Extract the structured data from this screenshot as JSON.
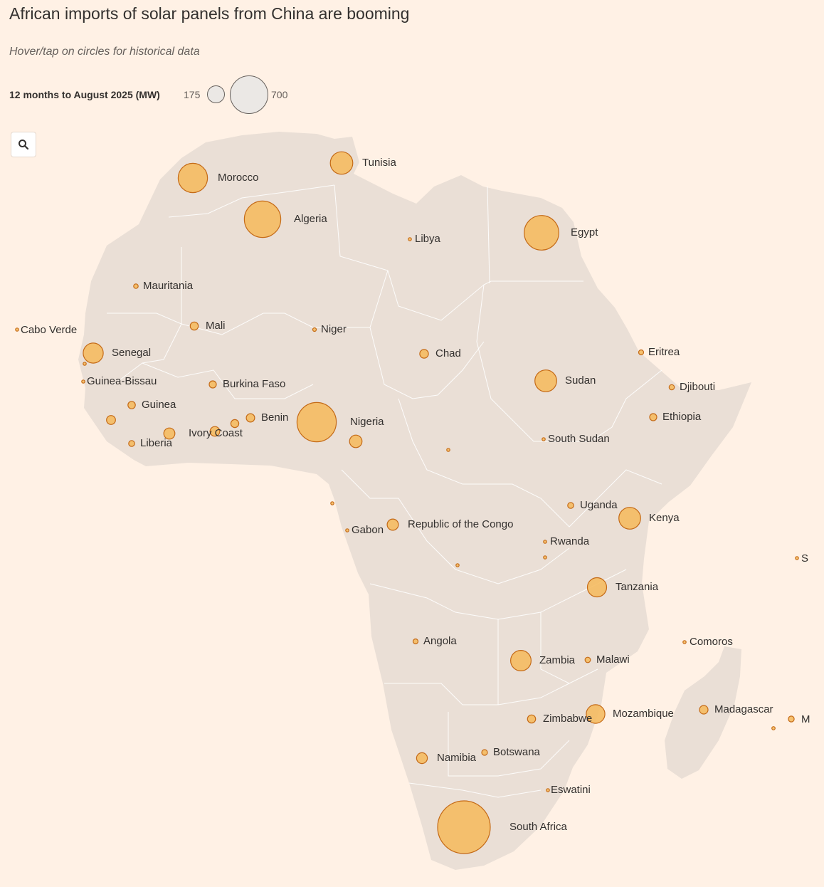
{
  "title": "African imports of solar panels from China are booming",
  "subtitle": "Hover/tap on circles for historical data",
  "legend": {
    "title": "12 months to August 2025 (MW)",
    "small_value": "175",
    "large_value": "700"
  },
  "controls": {
    "zoom_icon": "search-icon"
  },
  "colors": {
    "background": "#fff1e5",
    "land": "#eadfd6",
    "border": "#ffffff",
    "bubble_fill": "#f5bb62",
    "bubble_stroke": "#c46a17",
    "text": "#33302e"
  },
  "legend_reference": {
    "small_mw": 175,
    "large_mw": 700
  },
  "countries": [
    {
      "name": "Morocco",
      "mw": 407
    },
    {
      "name": "Tunisia",
      "mw": 240
    },
    {
      "name": "Algeria",
      "mw": 628
    },
    {
      "name": "Libya",
      "mw": 2
    },
    {
      "name": "Egypt",
      "mw": 565
    },
    {
      "name": "Mauritania",
      "mw": 10
    },
    {
      "name": "Mali",
      "mw": 31
    },
    {
      "name": "Niger",
      "mw": 6
    },
    {
      "name": "Cabo Verde",
      "mw": 1
    },
    {
      "name": "Senegal",
      "mw": 190
    },
    {
      "name": "Chad",
      "mw": 36
    },
    {
      "name": "Eritrea",
      "mw": 12
    },
    {
      "name": "Sudan",
      "mw": 225
    },
    {
      "name": "Guinea-Bissau",
      "mw": 1
    },
    {
      "name": "Djibouti",
      "mw": 13
    },
    {
      "name": "Burkina Faso",
      "mw": 24
    },
    {
      "name": "Guinea",
      "mw": 26
    },
    {
      "name": "Ethiopia",
      "mw": 24
    },
    {
      "name": "Benin",
      "mw": 33
    },
    {
      "name": "Nigeria",
      "mw": 730
    },
    {
      "name": "Ivory Coast",
      "mw": 59
    },
    {
      "name": "Liberia",
      "mw": 17
    },
    {
      "name": "South Sudan",
      "mw": 1
    },
    {
      "name": "Uganda",
      "mw": 17
    },
    {
      "name": "Kenya",
      "mw": 225
    },
    {
      "name": "Republic of the Congo",
      "mw": 60
    },
    {
      "name": "Gabon",
      "mw": 2
    },
    {
      "name": "Rwanda",
      "mw": 2
    },
    {
      "name": "Tanzania",
      "mw": 176
    },
    {
      "name": "Comoros",
      "mw": 3
    },
    {
      "name": "Angola",
      "mw": 12
    },
    {
      "name": "Zambia",
      "mw": 198
    },
    {
      "name": "Malawi",
      "mw": 14
    },
    {
      "name": "Madagascar",
      "mw": 34
    },
    {
      "name": "Zimbabwe",
      "mw": 31
    },
    {
      "name": "Mozambique",
      "mw": 165
    },
    {
      "name": "Namibia",
      "mw": 55
    },
    {
      "name": "Botswana",
      "mw": 15
    },
    {
      "name": "Eswatini",
      "mw": 1
    },
    {
      "name": "South Africa",
      "mw": 1313
    },
    {
      "name": "S",
      "mw": 1
    },
    {
      "name": "M",
      "mw": 16
    }
  ],
  "unlabeled_bubbles": [
    {
      "mw": 2
    },
    {
      "mw": 38
    },
    {
      "mw": 45
    },
    {
      "mw": 30
    },
    {
      "mw": 75
    },
    {
      "mw": 2
    },
    {
      "mw": 2
    },
    {
      "mw": 3
    },
    {
      "mw": 1
    },
    {
      "mw": 5
    }
  ]
}
